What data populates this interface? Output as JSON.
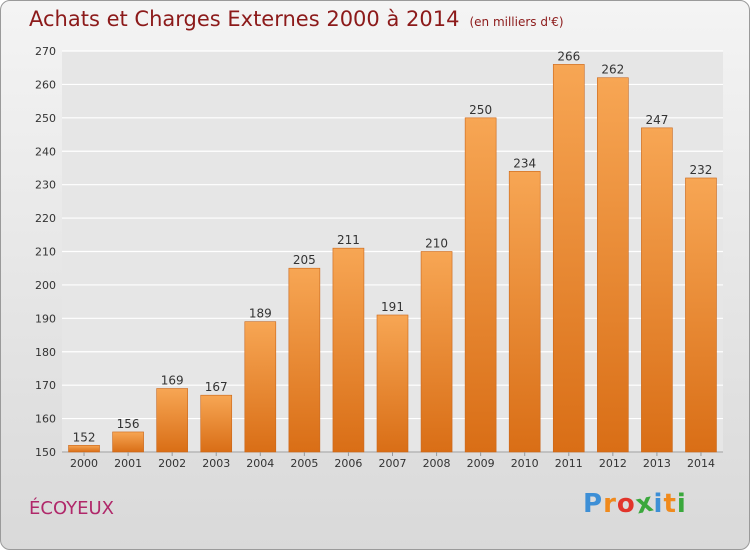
{
  "title": "Achats et Charges Externes 2000 à 2014",
  "unit": "(en milliers d'€)",
  "place": "ÉCOYEUX",
  "logo": {
    "letters": [
      "P",
      "r",
      "o",
      "x",
      "i",
      "t",
      "i"
    ],
    "colors": [
      "#3d8fd6",
      "#f08a1c",
      "#e2342b",
      "#3aa83c",
      "#3d8fd6",
      "#f08a1c",
      "#3aa83c"
    ]
  },
  "colors": {
    "bar_top": "#f7a654",
    "bar_bottom": "#d96e16",
    "grid": "#ffffff",
    "axis_text": "#333333"
  },
  "chart_data": {
    "type": "bar",
    "title": "Achats et Charges Externes 2000 à 2014",
    "subtitle": "(en milliers d'€)",
    "categories": [
      "2000",
      "2001",
      "2002",
      "2003",
      "2004",
      "2005",
      "2006",
      "2007",
      "2008",
      "2009",
      "2010",
      "2011",
      "2012",
      "2013",
      "2014"
    ],
    "values": [
      152,
      156,
      169,
      167,
      189,
      205,
      211,
      191,
      210,
      250,
      234,
      266,
      262,
      247,
      232
    ],
    "ylim": [
      150,
      270
    ],
    "yticks": [
      150,
      160,
      170,
      180,
      190,
      200,
      210,
      220,
      230,
      240,
      250,
      260,
      270
    ],
    "grid": true,
    "data_labels": true
  }
}
